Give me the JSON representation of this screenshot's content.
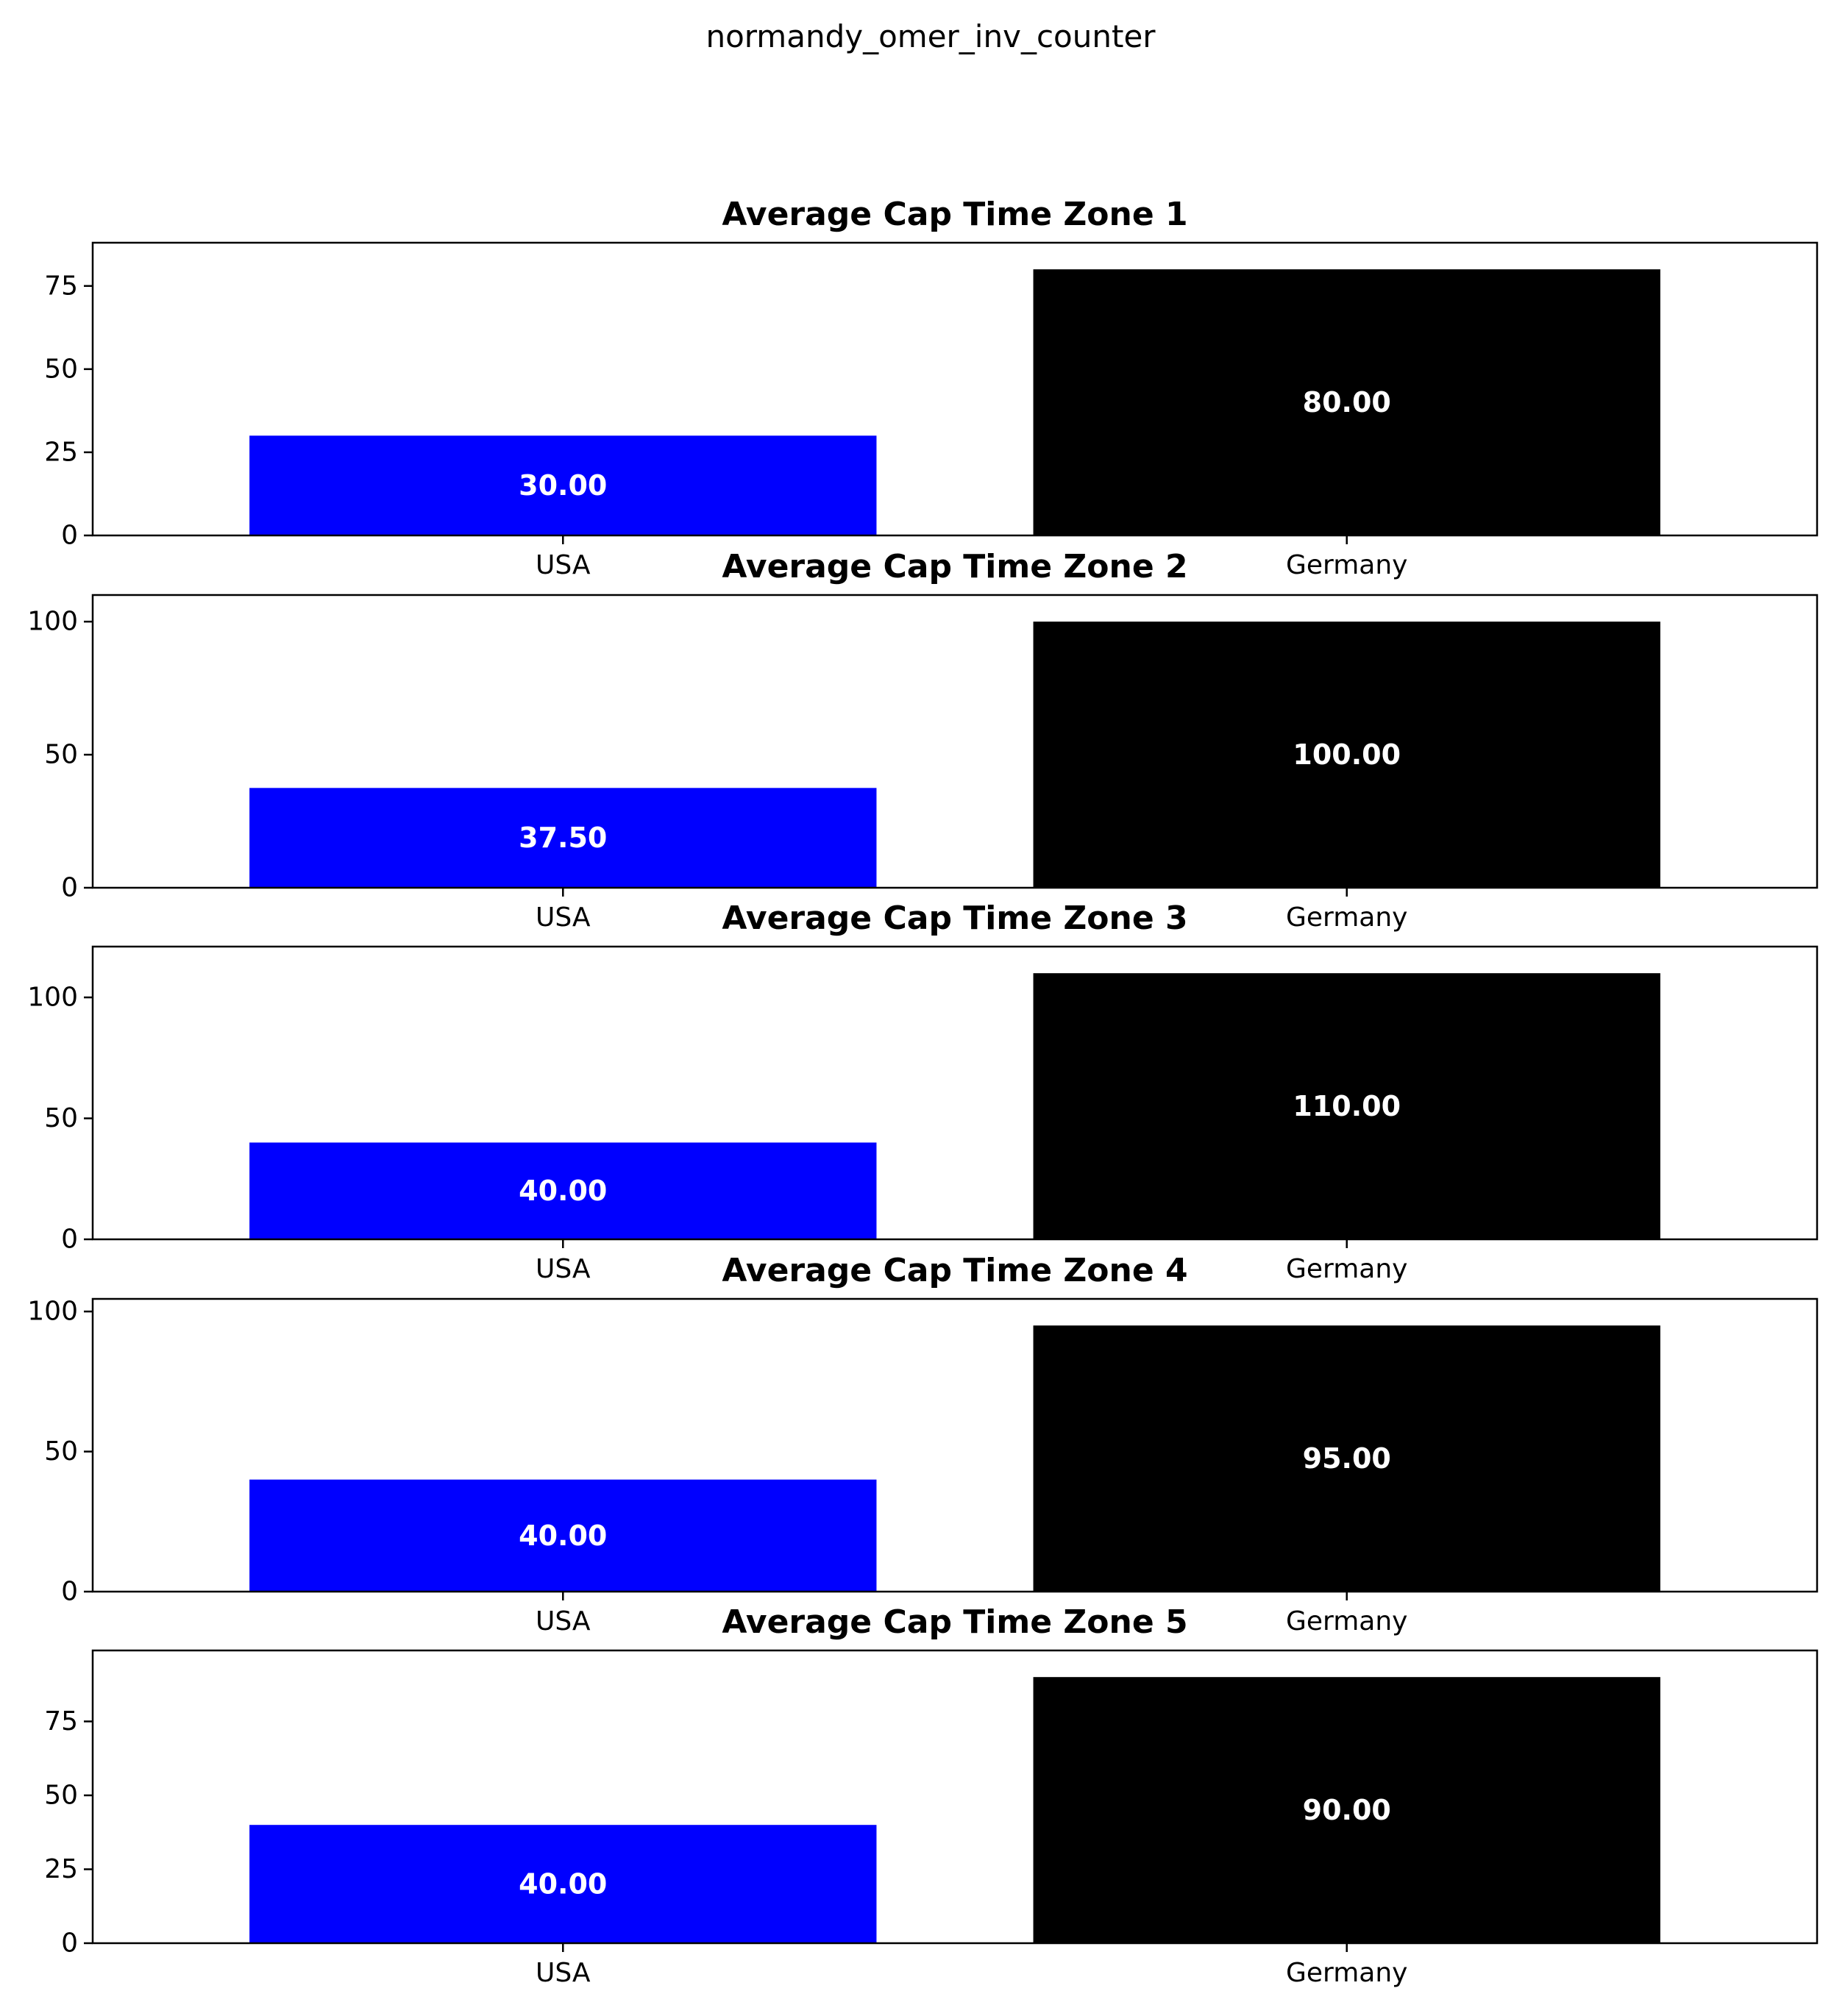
{
  "figure": {
    "suptitle": "normandy_omer_inv_counter",
    "background": "#ffffff"
  },
  "chart_data": [
    {
      "type": "bar",
      "title": "Average Cap Time Zone 1",
      "categories": [
        "USA",
        "Germany"
      ],
      "values": [
        30,
        80
      ],
      "value_labels": [
        "30.00",
        "80.00"
      ],
      "colors": [
        "#0000ff",
        "#000000"
      ],
      "ylim": [
        0,
        88
      ],
      "yticks": [
        0,
        25,
        50,
        75
      ],
      "xlabel": "",
      "ylabel": "",
      "grid": false
    },
    {
      "type": "bar",
      "title": "Average Cap Time Zone 2",
      "categories": [
        "USA",
        "Germany"
      ],
      "values": [
        37.5,
        100
      ],
      "value_labels": [
        "37.50",
        "100.00"
      ],
      "colors": [
        "#0000ff",
        "#000000"
      ],
      "ylim": [
        0,
        110
      ],
      "yticks": [
        0,
        50,
        100
      ],
      "xlabel": "",
      "ylabel": "",
      "grid": false
    },
    {
      "type": "bar",
      "title": "Average Cap Time Zone 3",
      "categories": [
        "USA",
        "Germany"
      ],
      "values": [
        40,
        110
      ],
      "value_labels": [
        "40.00",
        "110.00"
      ],
      "colors": [
        "#0000ff",
        "#000000"
      ],
      "ylim": [
        0,
        121
      ],
      "yticks": [
        0,
        50,
        100
      ],
      "xlabel": "",
      "ylabel": "",
      "grid": false
    },
    {
      "type": "bar",
      "title": "Average Cap Time Zone 4",
      "categories": [
        "USA",
        "Germany"
      ],
      "values": [
        40,
        95
      ],
      "value_labels": [
        "40.00",
        "95.00"
      ],
      "colors": [
        "#0000ff",
        "#000000"
      ],
      "ylim": [
        0,
        104.5
      ],
      "yticks": [
        0,
        50,
        100
      ],
      "xlabel": "",
      "ylabel": "",
      "grid": false
    },
    {
      "type": "bar",
      "title": "Average Cap Time Zone 5",
      "categories": [
        "USA",
        "Germany"
      ],
      "values": [
        40,
        90
      ],
      "value_labels": [
        "40.00",
        "90.00"
      ],
      "colors": [
        "#0000ff",
        "#000000"
      ],
      "ylim": [
        0,
        99
      ],
      "yticks": [
        0,
        25,
        50,
        75
      ],
      "xlabel": "",
      "ylabel": "",
      "grid": false
    }
  ]
}
